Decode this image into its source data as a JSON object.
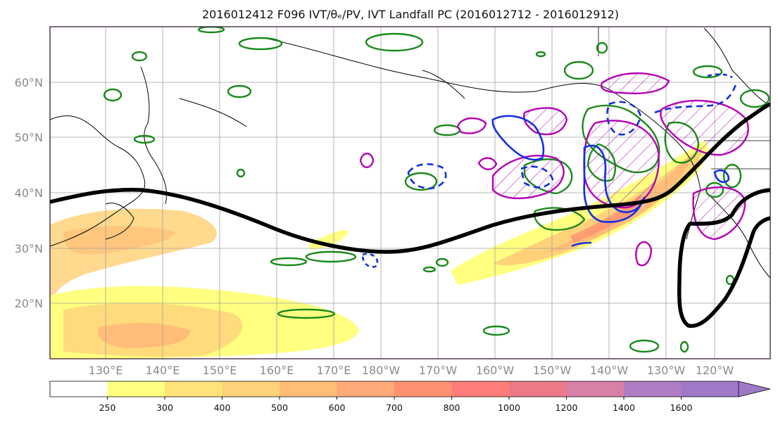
{
  "title": "2016012412 F096 IVT/θₑ/PV, IVT Landfall PC (2016012712 - 2016012912)",
  "map": {
    "lat_ticks": [
      "60°N",
      "50°N",
      "40°N",
      "30°N",
      "20°N"
    ],
    "lon_ticks": [
      "130°E",
      "140°E",
      "150°E",
      "160°E",
      "170°E",
      "180°W",
      "170°W",
      "160°W",
      "150°W",
      "140°W",
      "130°W",
      "120°W"
    ],
    "extent": {
      "lon_min": 120,
      "lon_max": 247,
      "lat_min": 10,
      "lat_max": 70
    },
    "gridlines": true,
    "layers": {
      "ivt_fill": "IVT shaded yellow–orange–purple",
      "theta_e_contour": "black thick line",
      "pv_contours": "green",
      "ivt_pc_positive": "magenta hatched",
      "ivt_pc_negative": "blue (dashed/solid)"
    },
    "colors": {
      "black_line": "#000000",
      "green": "#1a8a1a",
      "magenta": "#b400b4",
      "blue": "#1030e0"
    }
  },
  "colorbar": {
    "tick_labels": [
      "250",
      "300",
      "400",
      "500",
      "600",
      "700",
      "800",
      "1000",
      "1200",
      "1400",
      "1600"
    ],
    "bin_colors": [
      "#ffffff",
      "#ffff80",
      "#ffe27a",
      "#ffd27a",
      "#ffbd78",
      "#ffa878",
      "#ff9070",
      "#ff7c78",
      "#ee7888",
      "#d880a8",
      "#b07cc4",
      "#a078c8"
    ],
    "extend": "max"
  }
}
